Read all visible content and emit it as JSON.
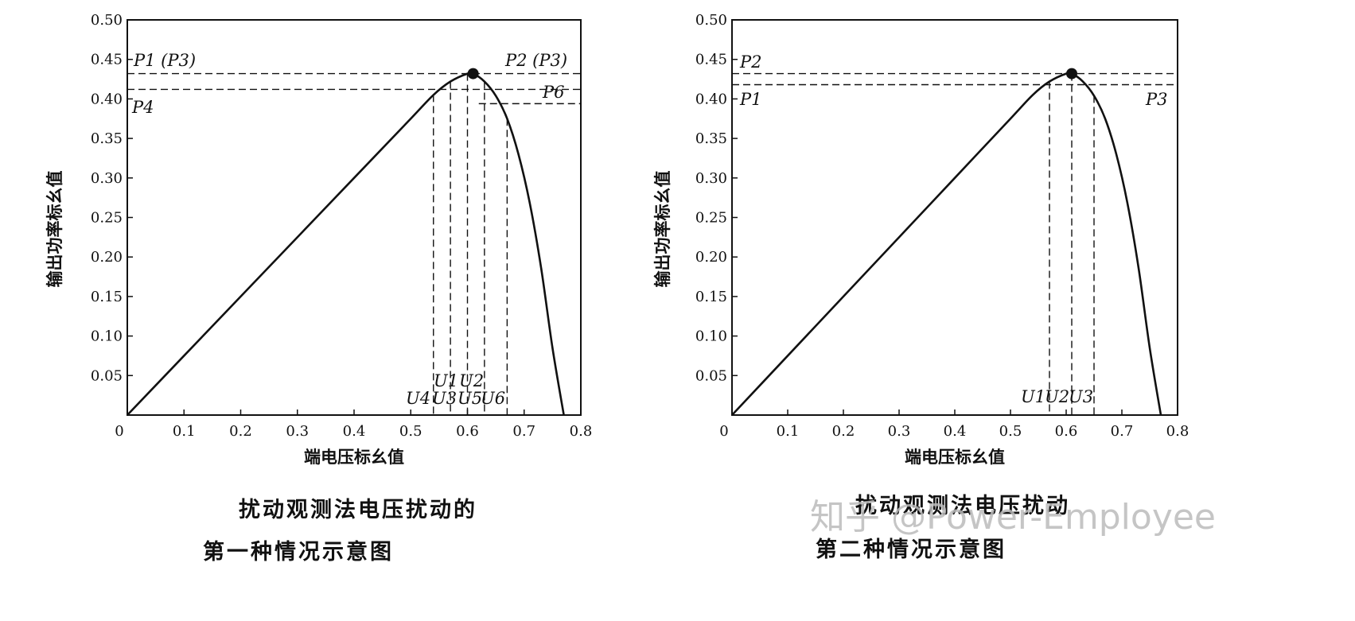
{
  "chart_data": [
    {
      "type": "line",
      "xlabel": "端电压标幺值",
      "ylabel": "输出功率标幺值",
      "xlim": [
        0,
        0.8
      ],
      "ylim": [
        0,
        0.5
      ],
      "xticks": [
        "0",
        "0.1",
        "0.2",
        "0.3",
        "0.4",
        "0.5",
        "0.6",
        "0.7",
        "0.8"
      ],
      "yticks": [
        "0.05",
        "0.10",
        "0.15",
        "0.20",
        "0.25",
        "0.30",
        "0.35",
        "0.40",
        "0.45",
        "0.50"
      ],
      "grid": false,
      "series": [
        {
          "x": [
            0,
            0.1,
            0.2,
            0.3,
            0.4,
            0.5,
            0.54,
            0.57,
            0.6,
            0.61,
            0.63,
            0.65,
            0.67,
            0.69,
            0.71,
            0.73,
            0.75,
            0.77
          ],
          "y": [
            0,
            0.075,
            0.15,
            0.225,
            0.3,
            0.375,
            0.405,
            0.422,
            0.432,
            0.432,
            0.422,
            0.404,
            0.375,
            0.33,
            0.268,
            0.186,
            0.085,
            0
          ]
        }
      ],
      "max_point": {
        "x": 0.61,
        "y": 0.432
      },
      "reference_lines": {
        "horizontal": [
          0.432,
          0.412,
          0.394
        ],
        "vertical": [
          0.54,
          0.57,
          0.6,
          0.63,
          0.67
        ]
      },
      "annotations": [
        "P1 (P3)",
        "P4",
        "P2 (P3)",
        "P6",
        "U4",
        "U1",
        "U3",
        "U2",
        "U5",
        "U6"
      ],
      "caption": [
        "扰动观测法电压扰动的",
        "第一种情况示意图"
      ]
    },
    {
      "type": "line",
      "xlabel": "端电压标幺值",
      "ylabel": "输出功率标幺值",
      "xlim": [
        0,
        0.8
      ],
      "ylim": [
        0,
        0.5
      ],
      "xticks": [
        "0",
        "0.1",
        "0.2",
        "0.3",
        "0.4",
        "0.5",
        "0.6",
        "0.7",
        "0.8"
      ],
      "yticks": [
        "0.05",
        "0.10",
        "0.15",
        "0.20",
        "0.25",
        "0.30",
        "0.35",
        "0.40",
        "0.45",
        "0.50"
      ],
      "grid": false,
      "series": [
        {
          "x": [
            0,
            0.1,
            0.2,
            0.3,
            0.4,
            0.5,
            0.54,
            0.57,
            0.6,
            0.61,
            0.63,
            0.65,
            0.67,
            0.69,
            0.71,
            0.73,
            0.75,
            0.77
          ],
          "y": [
            0,
            0.075,
            0.15,
            0.225,
            0.3,
            0.375,
            0.405,
            0.422,
            0.432,
            0.432,
            0.422,
            0.404,
            0.375,
            0.33,
            0.268,
            0.186,
            0.085,
            0
          ]
        }
      ],
      "max_point": {
        "x": 0.61,
        "y": 0.432
      },
      "reference_lines": {
        "horizontal": [
          0.432,
          0.418
        ],
        "vertical": [
          0.57,
          0.61,
          0.65
        ]
      },
      "annotations": [
        "P2",
        "P1",
        "P3",
        "U1",
        "U2",
        "U3"
      ],
      "caption": [
        "扰动观测法电压扰动",
        "第二种情况示意图"
      ]
    }
  ],
  "watermark": "知乎 @Power-Employee"
}
